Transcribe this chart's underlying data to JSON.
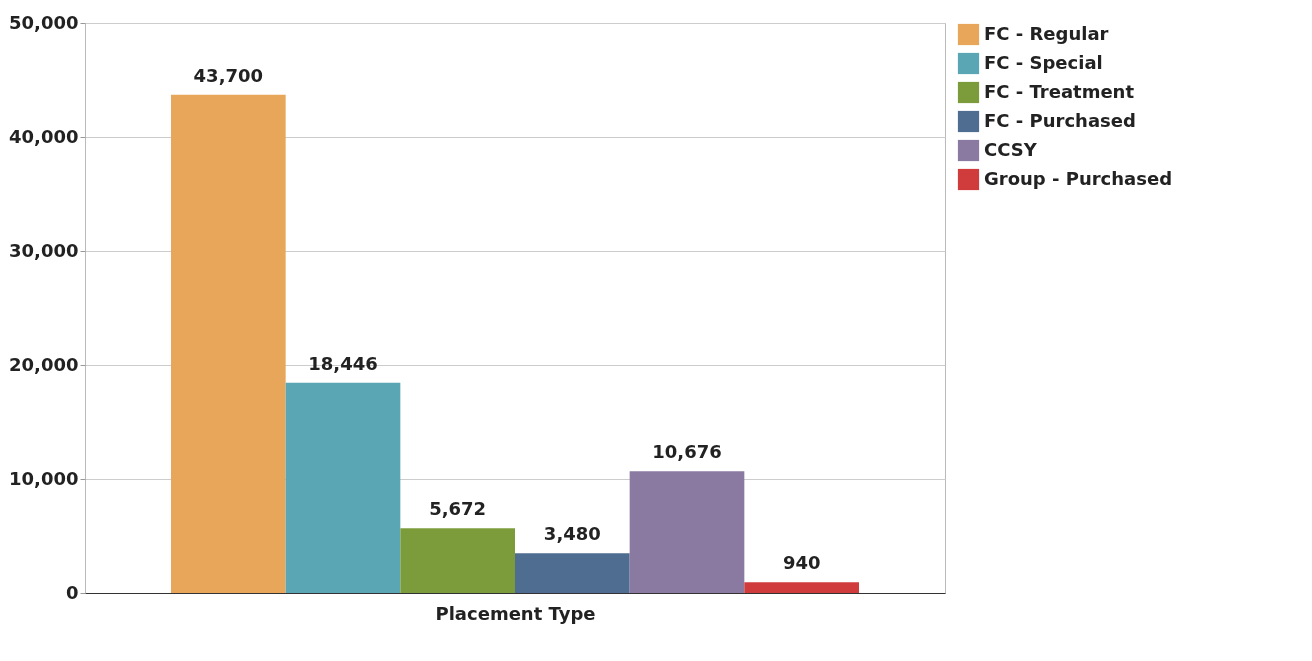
{
  "chart_data": {
    "type": "bar",
    "xlabel": "Placement Type",
    "categories": [
      null
    ],
    "series": [
      {
        "name": "FC - Regular",
        "color": "#e8a65a",
        "values": [
          43700
        ],
        "value_labels": [
          "43,700"
        ]
      },
      {
        "name": "FC - Special",
        "color": "#5aa6b4",
        "values": [
          18446
        ],
        "value_labels": [
          "18,446"
        ]
      },
      {
        "name": "FC - Treatment",
        "color": "#7c9c3c",
        "values": [
          5672
        ],
        "value_labels": [
          "5,672"
        ]
      },
      {
        "name": "FC - Purchased",
        "color": "#4f6d90",
        "values": [
          3480
        ],
        "value_labels": [
          "3,480"
        ]
      },
      {
        "name": "CCSY",
        "color": "#8a7aa2",
        "values": [
          10676
        ],
        "value_labels": [
          "10,676"
        ]
      },
      {
        "name": "Group - Purchased",
        "color": "#d03c3c",
        "values": [
          940
        ],
        "value_labels": [
          "940"
        ]
      }
    ],
    "ylim": [
      0,
      50000
    ],
    "yticks": [
      0,
      {
        "value": 10000,
        "label": "10,000"
      },
      {
        "value": 20000,
        "label": "20,000"
      },
      {
        "value": 30000,
        "label": "30,000"
      },
      {
        "value": 40000,
        "label": "40,000"
      },
      {
        "value": 50000,
        "label": "50,000"
      }
    ],
    "grid": "y",
    "legend": "right"
  }
}
